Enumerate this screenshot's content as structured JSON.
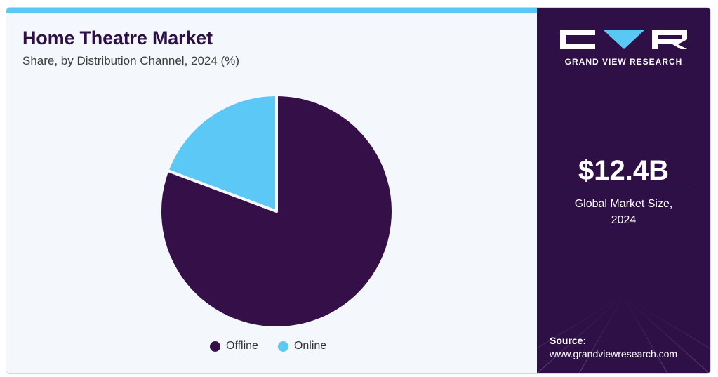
{
  "header": {
    "title": "Home Theatre Market",
    "subtitle": "Share, by Distribution Channel, 2024 (%)"
  },
  "chart_data": {
    "type": "pie",
    "title": "Home Theatre Market",
    "subtitle": "Share, by Distribution Channel, 2024 (%)",
    "categories": [
      "Offline",
      "Online"
    ],
    "values": [
      80.7,
      19.3
    ],
    "colors": [
      "#350f48",
      "#5bc8f5"
    ],
    "legend_position": "bottom"
  },
  "legend": {
    "items": [
      {
        "label": "Offline",
        "color": "#350f48"
      },
      {
        "label": "Online",
        "color": "#5bc8f5"
      }
    ]
  },
  "sidebar": {
    "brand": "GRAND VIEW RESEARCH",
    "market_size": "$12.4B",
    "market_label_line1": "Global Market Size,",
    "market_label_line2": "2024",
    "source_label": "Source:",
    "source_url": "www.grandviewresearch.com",
    "background_color": "#2f1046",
    "accent_color": "#5ac8f5"
  }
}
